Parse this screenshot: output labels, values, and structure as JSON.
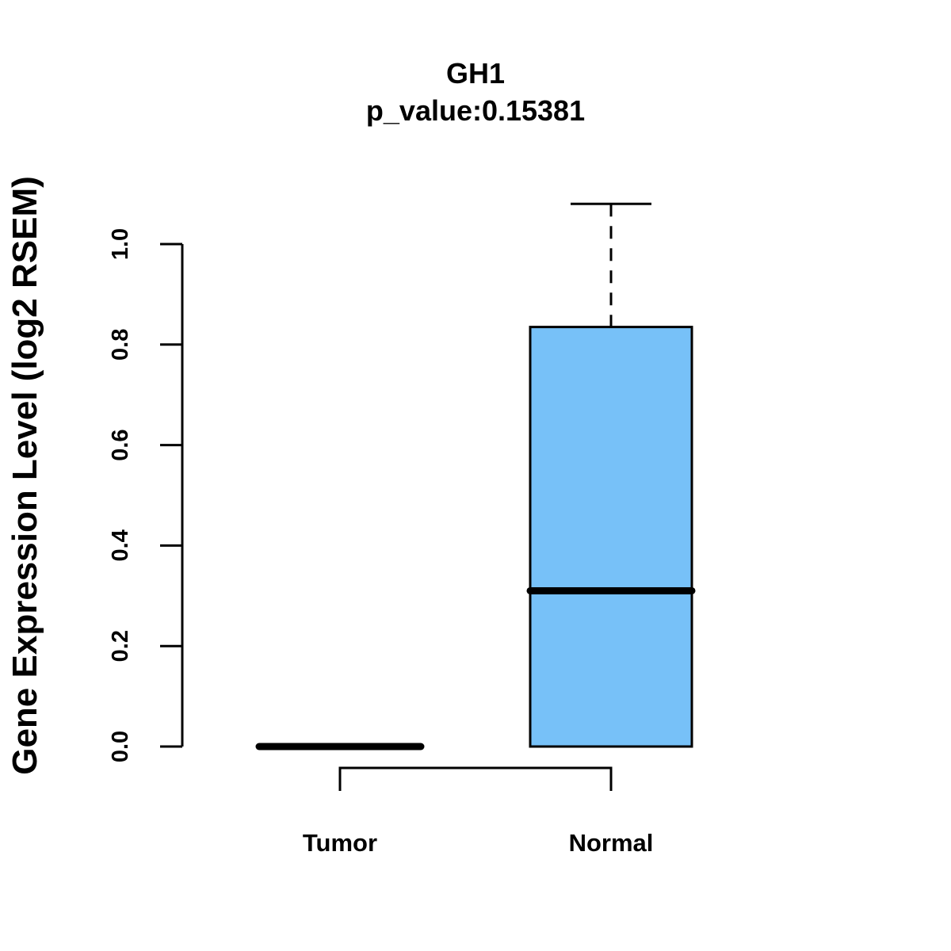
{
  "chart_data": {
    "type": "box",
    "title": "GH1",
    "subtitle": "p_value:0.15381",
    "xlabel": "",
    "ylabel": "Gene Expression Level (log2 RSEM)",
    "ylim": [
      0,
      1.0
    ],
    "yticks": [
      0.0,
      0.2,
      0.4,
      0.6,
      0.8,
      1.0
    ],
    "ytick_labels": [
      "0.0",
      "0.2",
      "0.4",
      "0.6",
      "0.8",
      "1.0"
    ],
    "categories": [
      "Tumor",
      "Normal"
    ],
    "boxes": [
      {
        "name": "Tumor",
        "min": 0.0,
        "q1": 0.0,
        "median": 0.0,
        "q3": 0.0,
        "max": 0.0,
        "fill": "#ffffff"
      },
      {
        "name": "Normal",
        "min": 0.0,
        "q1": 0.0,
        "median": 0.31,
        "q3": 0.835,
        "max": 1.08,
        "fill": "#77c1f8"
      }
    ],
    "grid": false,
    "colors": {
      "normal_fill": "#77c1f8",
      "stroke": "#000000"
    }
  }
}
